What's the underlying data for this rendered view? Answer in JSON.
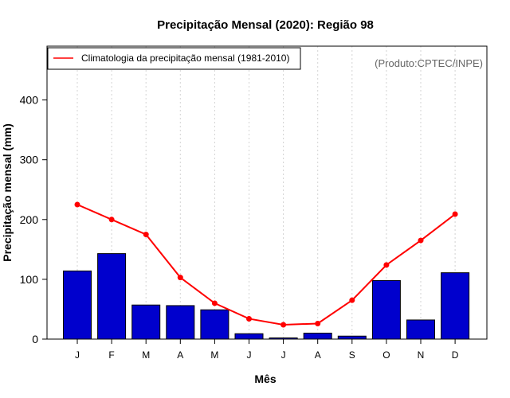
{
  "chart_data": {
    "type": "bar",
    "title": "Precipitação Mensal (2020): Região 98",
    "xlabel": "Mês",
    "ylabel": "Precipitação mensal (mm)",
    "ylim": [
      0,
      490
    ],
    "yticks": [
      0,
      100,
      200,
      300,
      400
    ],
    "categories": [
      "J",
      "F",
      "M",
      "A",
      "M",
      "J",
      "J",
      "A",
      "S",
      "O",
      "N",
      "D"
    ],
    "series": [
      {
        "name": "Precipitação mensal 2020",
        "kind": "bar",
        "color": "#0000cd",
        "values": [
          114,
          143,
          57,
          56,
          49,
          9,
          2,
          10,
          5,
          98,
          32,
          111
        ]
      },
      {
        "name": "Climatologia da precipitação mensal (1981-2010)",
        "kind": "line",
        "color": "#ff0000",
        "values": [
          225,
          200,
          175,
          103,
          60,
          34,
          24,
          26,
          65,
          124,
          165,
          209
        ]
      }
    ],
    "legend": {
      "position": "top-left",
      "entries": [
        "Climatologia da precipitação mensal (1981-2010)"
      ]
    },
    "annotation": "(Produto:CPTEC/INPE)",
    "grid": "vertical-dotted"
  }
}
